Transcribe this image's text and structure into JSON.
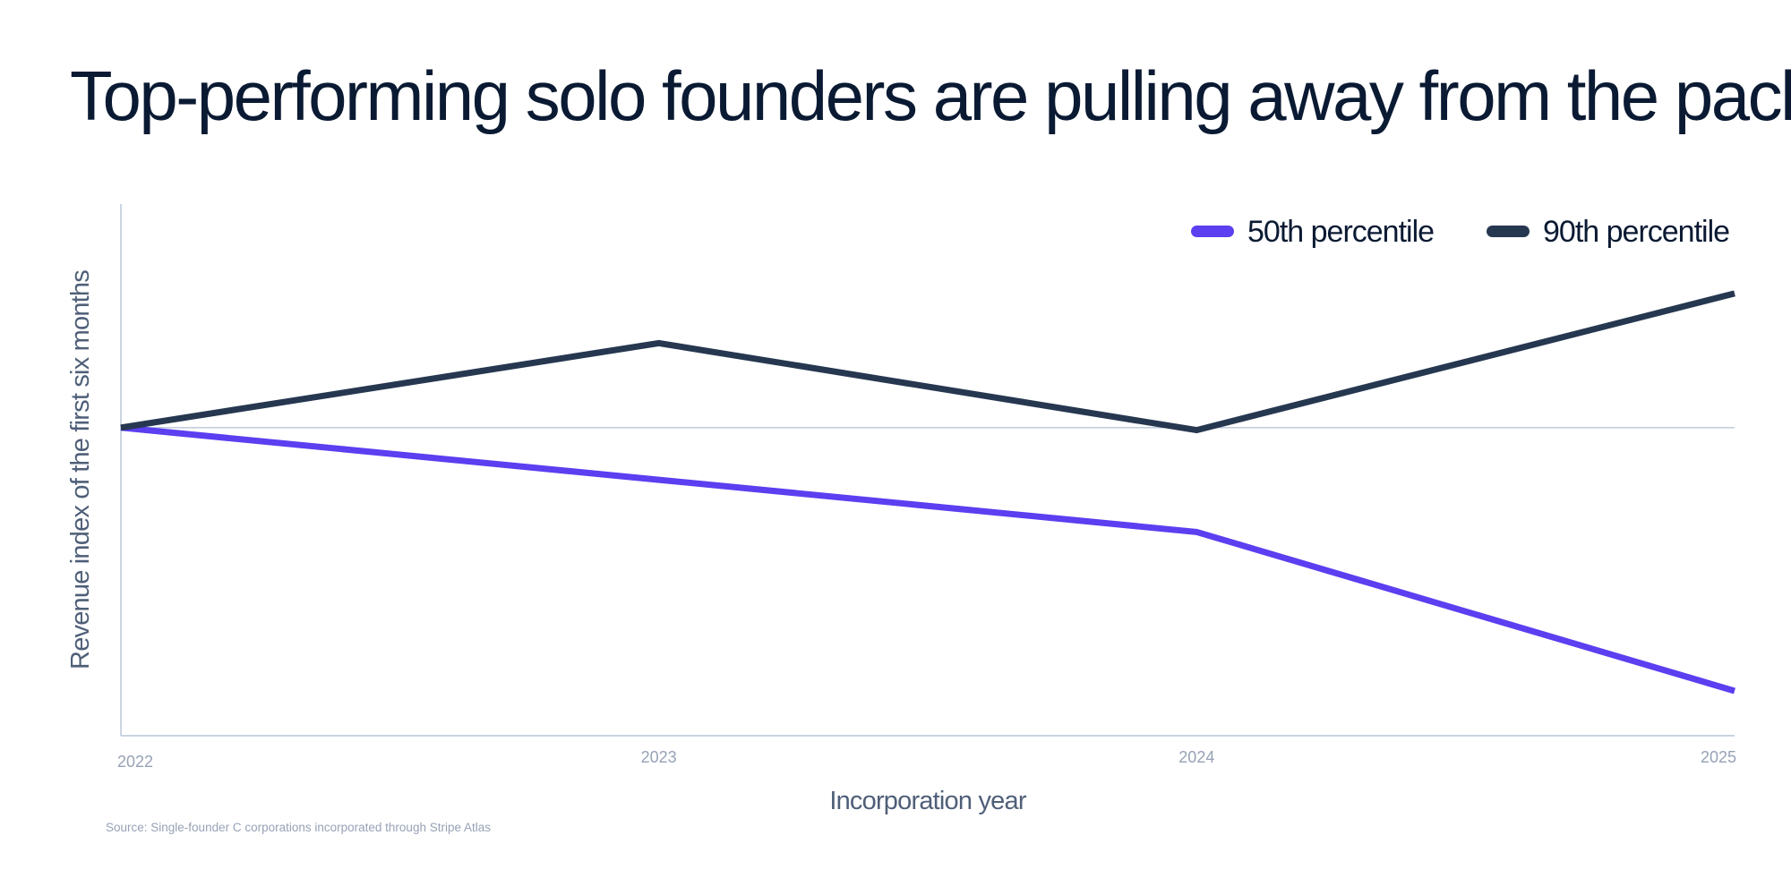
{
  "title": "Top-performing solo founders are pulling away from the pack",
  "source": "Source: Single-founder C corporations incorporated through Stripe Atlas",
  "colors": {
    "series_50": "#5b3ff0",
    "series_90": "#263750",
    "axis": "#b9c6d8",
    "tick_text": "#97a2b6",
    "axis_label": "#4f5f78",
    "title": "#0b1a33"
  },
  "chart_data": {
    "type": "line",
    "title": "Top-performing solo founders are pulling away from the pack",
    "xlabel": "Incorporation year",
    "ylabel": "Revenue index of the first six months",
    "x": [
      "2022",
      "2023",
      "2024",
      "2025"
    ],
    "series": [
      {
        "name": "50th percentile",
        "color": "#5b3ff0",
        "values": [
          100,
          89.5,
          79,
          47
        ]
      },
      {
        "name": "90th percentile",
        "color": "#263750",
        "values": [
          100,
          117,
          99.5,
          127
        ]
      }
    ],
    "reference_line": 100,
    "ylim": [
      38,
      145
    ],
    "yaxis_ticks_shown": false,
    "grid": false,
    "legend_position": "top-right"
  }
}
